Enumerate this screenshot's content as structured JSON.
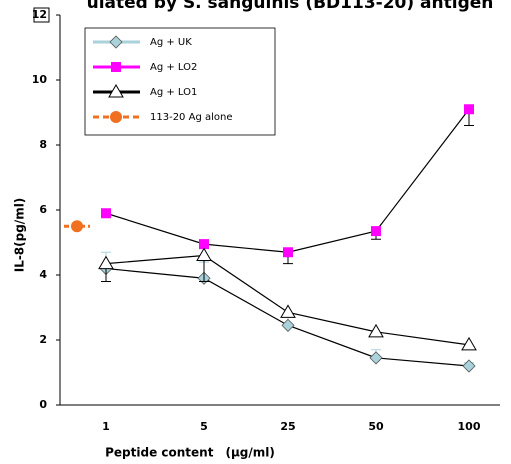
{
  "chart_data": {
    "type": "line",
    "title": "ulated by S. sanguinis (BD113-20) antigen",
    "xlabel": "Peptide content　(μg/ml)",
    "ylabel": "IL-8(pg/ml)",
    "categories": [
      null,
      "1",
      "5",
      "25",
      "50",
      "100"
    ],
    "ylim": [
      0,
      12
    ],
    "yticks": [
      0,
      2,
      4,
      6,
      8,
      10,
      12
    ],
    "series": [
      {
        "name": "Ag + UK",
        "color": "#a9d2da",
        "marker": "diamond",
        "values": [
          null,
          4.2,
          3.9,
          2.45,
          1.45,
          1.2
        ],
        "errors": [
          null,
          0.5,
          0.5,
          0.35,
          0.25,
          0.1
        ]
      },
      {
        "name": "Ag + LO2",
        "color": "#ff00ff",
        "marker": "square",
        "values": [
          null,
          5.9,
          4.95,
          4.7,
          5.35,
          9.1
        ],
        "errors": [
          null,
          null,
          1.15,
          0.35,
          0.25,
          0.5
        ]
      },
      {
        "name": "Ag + LO1",
        "color": "#000000",
        "marker": "triangle",
        "values": [
          null,
          4.35,
          4.6,
          2.85,
          2.25,
          1.85
        ],
        "errors": [
          null,
          0.55,
          null,
          null,
          null,
          null
        ]
      },
      {
        "name": "113-20 Ag alone",
        "color": "#f07020",
        "marker": "circle",
        "values": [
          5.5,
          null,
          null,
          null,
          null,
          null
        ]
      }
    ]
  }
}
